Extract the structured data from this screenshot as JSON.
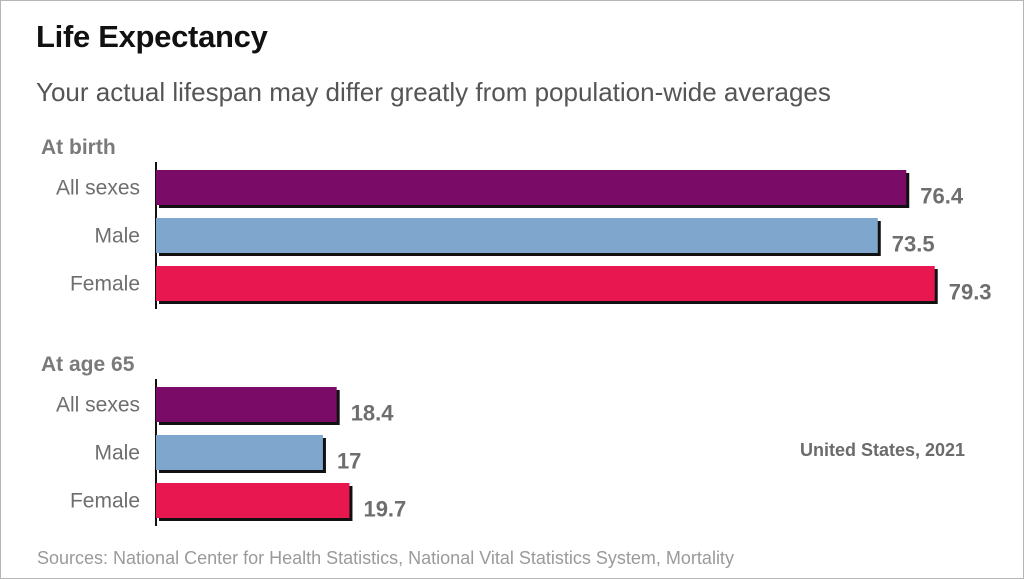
{
  "title": "Life Expectancy",
  "subtitle": "Your actual lifespan may differ greatly from population-wide averages",
  "source": "Sources: National Center for Health Statistics, National Vital Statistics System, Mortality",
  "note": "United States, 2021",
  "colors": {
    "all_sexes": "#7a0b66",
    "male": "#7fa6cc",
    "female": "#e8174f"
  },
  "chart_data": {
    "type": "bar",
    "orientation": "horizontal",
    "grid": false,
    "groups": [
      {
        "label": "At birth",
        "categories": [
          "All sexes",
          "Male",
          "Female"
        ],
        "values": [
          76.4,
          73.5,
          79.3
        ],
        "value_labels": [
          "76.4",
          "73.5",
          "79.3"
        ]
      },
      {
        "label": "At age 65",
        "categories": [
          "All sexes",
          "Male",
          "Female"
        ],
        "values": [
          18.4,
          17,
          19.7
        ],
        "value_labels": [
          "18.4",
          "17",
          "19.7"
        ]
      }
    ]
  }
}
